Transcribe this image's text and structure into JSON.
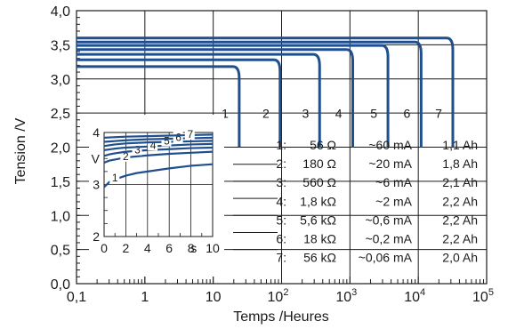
{
  "chart_data": [
    {
      "type": "line",
      "x_scale": "log",
      "xlabel": "Temps /Heures",
      "ylabel": "Tension /V",
      "xlim": [
        0.1,
        100000
      ],
      "ylim": [
        0.0,
        4.0
      ],
      "grid": true,
      "x_ticks": [
        {
          "value": 0.1,
          "label": "0,1"
        },
        {
          "value": 1,
          "label": "1"
        },
        {
          "value": 10,
          "label": "10"
        },
        {
          "value": 100,
          "label": "10",
          "sup": "2"
        },
        {
          "value": 1000,
          "label": "10",
          "sup": "3"
        },
        {
          "value": 10000,
          "label": "10",
          "sup": "4"
        },
        {
          "value": 100000,
          "label": "10",
          "sup": "5"
        }
      ],
      "y_ticks": [
        {
          "value": 0.0,
          "label": "0,0"
        },
        {
          "value": 0.5,
          "label": "0,5"
        },
        {
          "value": 1.0,
          "label": "1,0"
        },
        {
          "value": 1.5,
          "label": "1,5"
        },
        {
          "value": 2.0,
          "label": "2,0"
        },
        {
          "value": 2.5,
          "label": "2,5"
        },
        {
          "value": 3.0,
          "label": "3,0"
        },
        {
          "value": 3.5,
          "label": "3,5"
        },
        {
          "value": 4.0,
          "label": "4,0"
        }
      ],
      "series": [
        {
          "label": "1",
          "plateau": 3.18,
          "end_hours": 24,
          "cutoff": 2.0
        },
        {
          "label": "2",
          "plateau": 3.28,
          "end_hours": 95,
          "cutoff": 2.0
        },
        {
          "label": "3",
          "plateau": 3.36,
          "end_hours": 360,
          "cutoff": 2.0
        },
        {
          "label": "4",
          "plateau": 3.43,
          "end_hours": 1100,
          "cutoff": 2.0
        },
        {
          "label": "5",
          "plateau": 3.49,
          "end_hours": 3600,
          "cutoff": 2.0
        },
        {
          "label": "6",
          "plateau": 3.54,
          "end_hours": 11000,
          "cutoff": 2.0
        },
        {
          "label": "7",
          "plateau": 3.6,
          "end_hours": 32000,
          "cutoff": 2.0
        }
      ],
      "legend_rows": [
        {
          "id": "1:",
          "load": "56 Ω",
          "current": "~60 mA",
          "capacity": "1,1 Ah"
        },
        {
          "id": "2:",
          "load": "180 Ω",
          "current": "~20 mA",
          "capacity": "1,8 Ah"
        },
        {
          "id": "3:",
          "load": "560 Ω",
          "current": "~6 mA",
          "capacity": "2,1 Ah"
        },
        {
          "id": "4:",
          "load": "1,8 kΩ",
          "current": "~2 mA",
          "capacity": "2,2 Ah"
        },
        {
          "id": "5:",
          "load": "5,6 kΩ",
          "current": "~0,6 mA",
          "capacity": "2,2 Ah"
        },
        {
          "id": "6:",
          "load": "18 kΩ",
          "current": "~0,2 mA",
          "capacity": "2,2 Ah"
        },
        {
          "id": "7:",
          "load": "56 kΩ",
          "current": "~0,06 mA",
          "capacity": "2,0 Ah"
        }
      ]
    },
    {
      "type": "line",
      "inset": true,
      "xlabel": "s",
      "ylabel": "V",
      "xlim": [
        0,
        10
      ],
      "ylim": [
        2,
        4
      ],
      "grid": true,
      "x_ticks": [
        {
          "value": 0,
          "label": "0"
        },
        {
          "value": 2,
          "label": "2"
        },
        {
          "value": 4,
          "label": "4"
        },
        {
          "value": 6,
          "label": "6"
        },
        {
          "value": 8,
          "label": "8"
        },
        {
          "value": 10,
          "label": "10"
        }
      ],
      "y_ticks": [
        {
          "value": 2,
          "label": "2"
        },
        {
          "value": 3,
          "label": "3"
        },
        {
          "value": 4,
          "label": "4"
        }
      ],
      "series": [
        {
          "label": "1",
          "x": [
            0,
            0.5,
            1,
            2,
            3,
            4,
            6,
            8,
            10
          ],
          "y": [
            2.95,
            3.05,
            3.1,
            3.17,
            3.22,
            3.25,
            3.31,
            3.36,
            3.39
          ]
        },
        {
          "label": "2",
          "x": [
            0,
            0.5,
            1,
            2,
            4,
            6,
            8,
            10
          ],
          "y": [
            3.42,
            3.46,
            3.48,
            3.52,
            3.56,
            3.59,
            3.61,
            3.63
          ]
        },
        {
          "label": "3",
          "x": [
            0,
            0.5,
            1,
            2,
            4,
            6,
            8,
            10
          ],
          "y": [
            3.55,
            3.58,
            3.6,
            3.63,
            3.66,
            3.68,
            3.7,
            3.71
          ]
        },
        {
          "label": "4",
          "x": [
            0,
            1,
            2,
            4,
            6,
            8,
            10
          ],
          "y": [
            3.66,
            3.69,
            3.71,
            3.73,
            3.75,
            3.77,
            3.78
          ]
        },
        {
          "label": "5",
          "x": [
            0,
            1,
            2,
            4,
            6,
            8,
            10
          ],
          "y": [
            3.74,
            3.77,
            3.79,
            3.81,
            3.82,
            3.83,
            3.84
          ]
        },
        {
          "label": "6",
          "x": [
            0,
            2,
            4,
            6,
            8,
            10
          ],
          "y": [
            3.82,
            3.85,
            3.87,
            3.88,
            3.89,
            3.9
          ]
        },
        {
          "label": "7",
          "x": [
            0,
            2,
            4,
            6,
            8,
            10
          ],
          "y": [
            3.9,
            3.92,
            3.93,
            3.94,
            3.95,
            3.96
          ]
        }
      ]
    }
  ],
  "colors": {
    "curve": "#1f4f8f",
    "axis": "#1a1a1a",
    "grid": "#1a1a1a"
  }
}
